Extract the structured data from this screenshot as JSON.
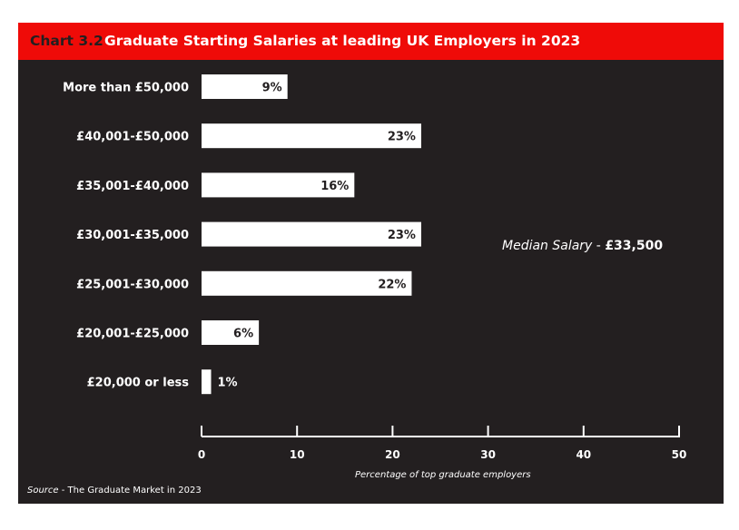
{
  "header": {
    "number": "Chart 3.2",
    "title": "Graduate Starting Salaries at leading UK Employers in 2023"
  },
  "annotation": {
    "label": "Median Salary",
    "separator": " - ",
    "value": "£33,500"
  },
  "source": {
    "label": "Source",
    "separator": " - ",
    "text": "The Graduate Market in 2023"
  },
  "colors": {
    "header": "#ef0b08",
    "background": "#231f20",
    "bar": "#ffffff",
    "text": "#ffffff"
  },
  "chart_data": {
    "type": "bar",
    "orientation": "horizontal",
    "title": "Graduate Starting Salaries at leading UK Employers in 2023",
    "xlabel": "Percentage of top graduate employers",
    "ylabel": "",
    "categories": [
      "More than £50,000",
      "£40,001-£50,000",
      "£35,001-£40,000",
      "£30,001-£35,000",
      "£25,001-£30,000",
      "£20,001-£25,000",
      "£20,000 or less"
    ],
    "values": [
      9,
      23,
      16,
      23,
      22,
      6,
      1
    ],
    "data_labels": [
      "9%",
      "23%",
      "16%",
      "23%",
      "22%",
      "6%",
      "1%"
    ],
    "xlim": [
      0,
      50
    ],
    "xticks": [
      0,
      10,
      20,
      30,
      40,
      50
    ],
    "grid": false,
    "legend": "none"
  }
}
